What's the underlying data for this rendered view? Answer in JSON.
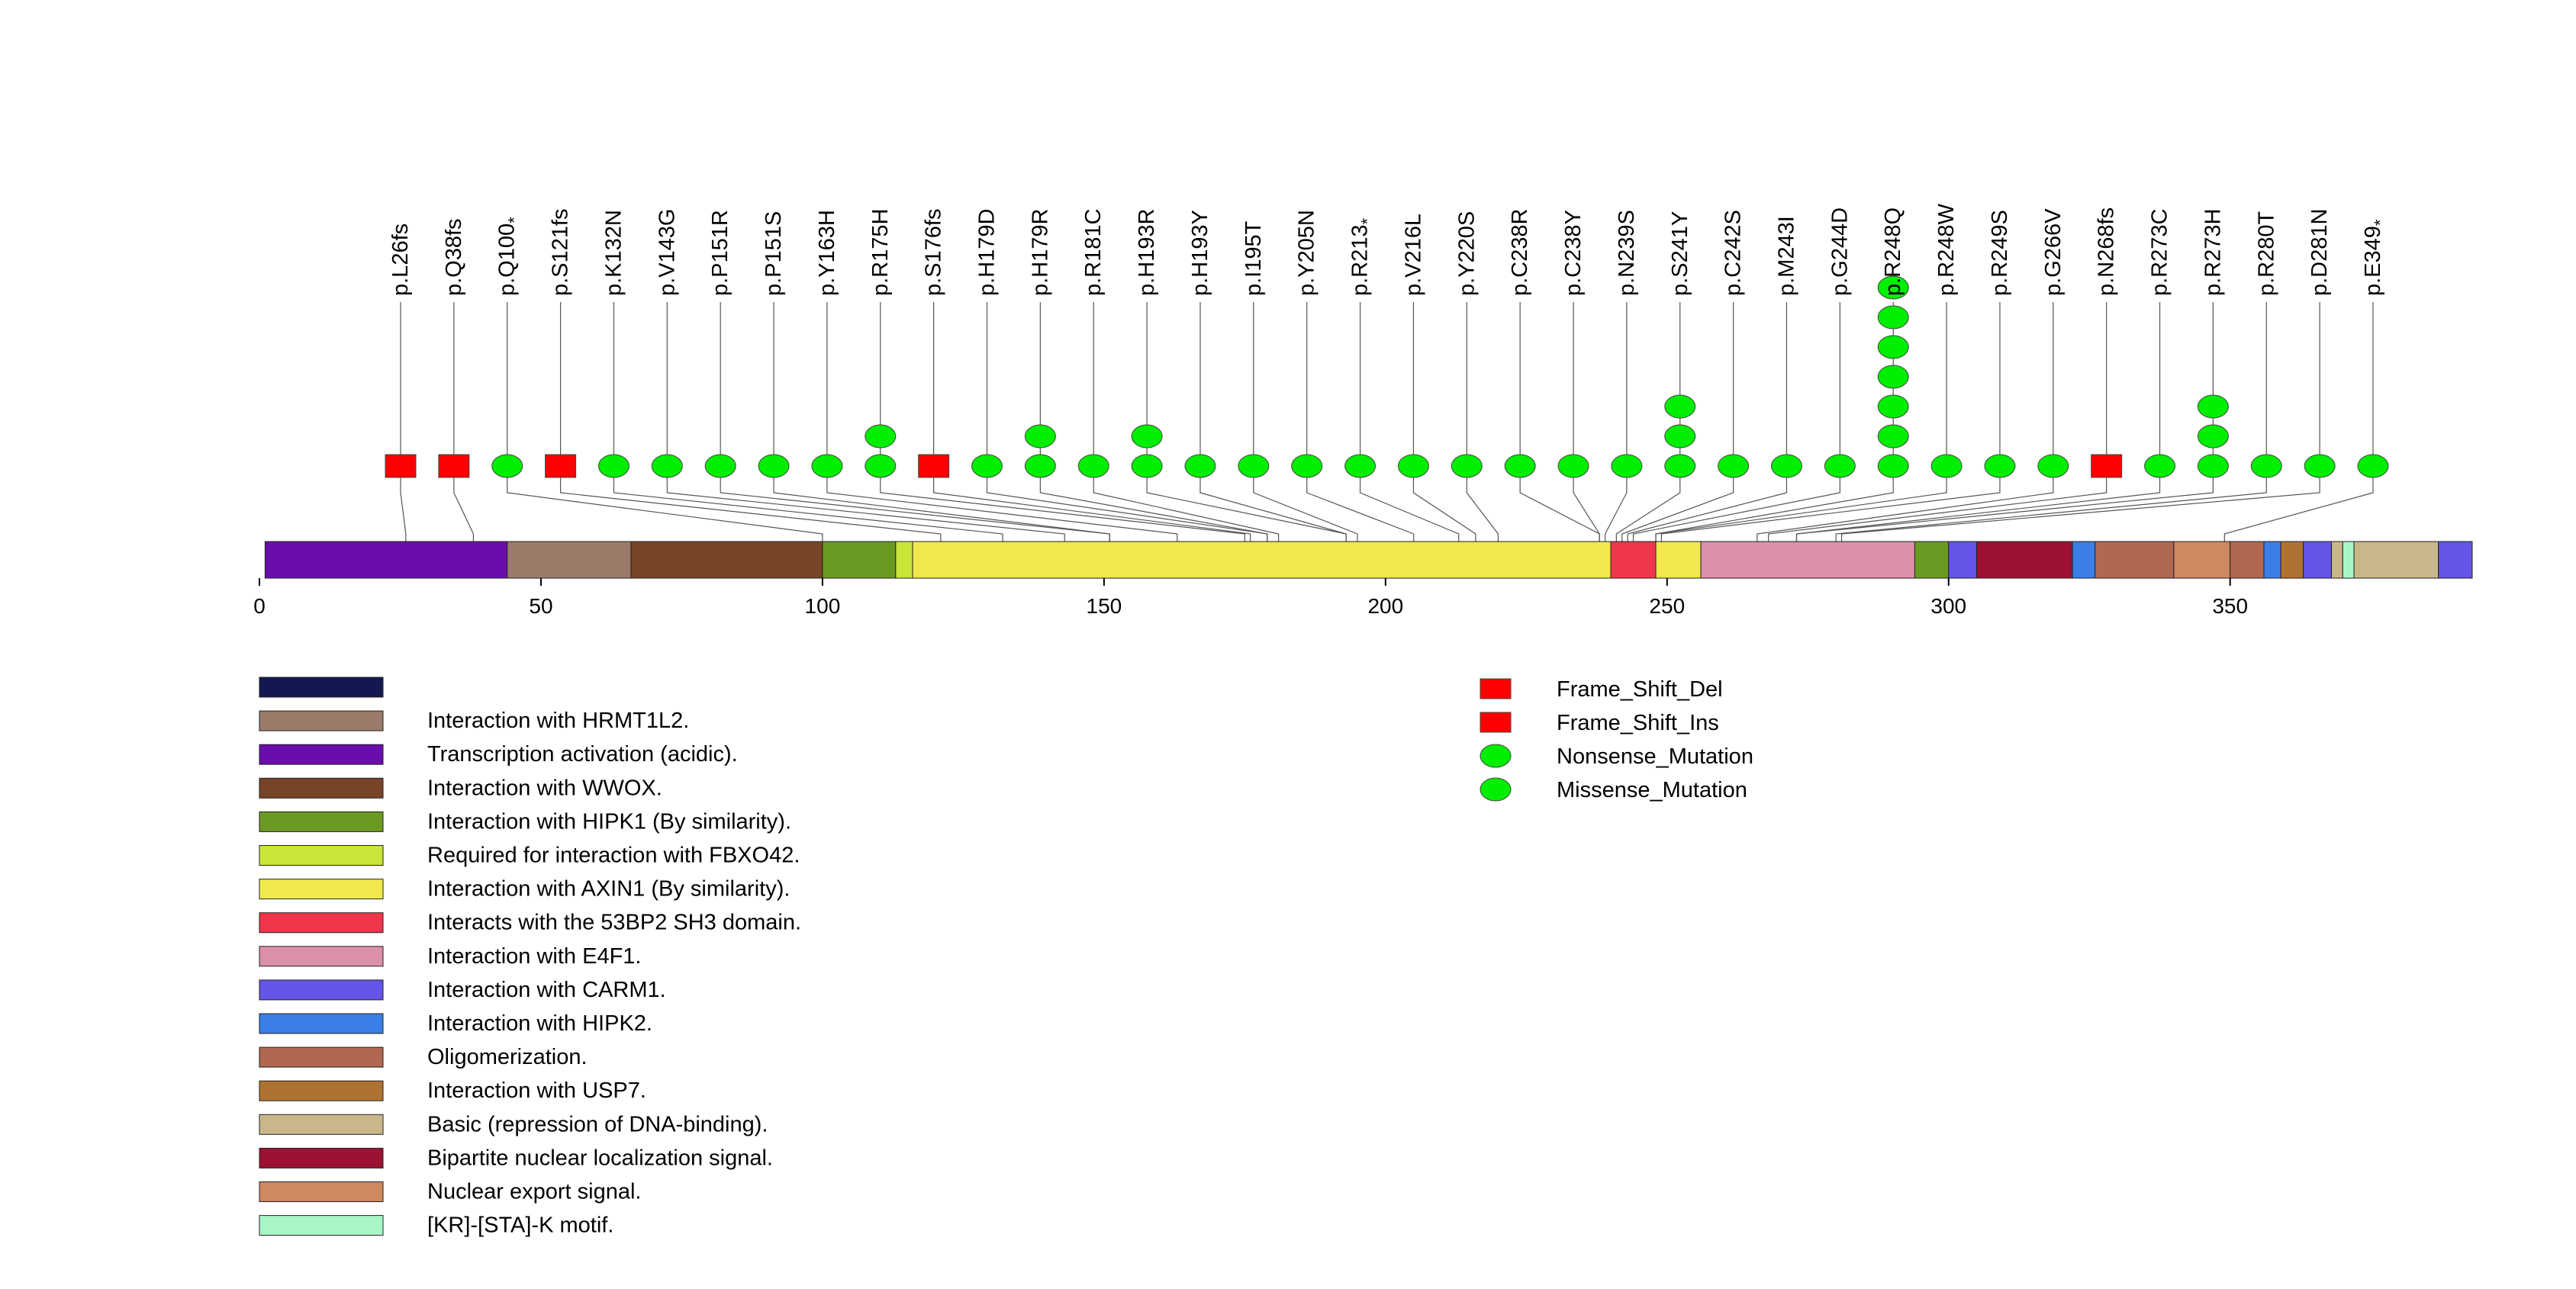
{
  "chart_data": {
    "type": "lollipop",
    "title": "",
    "protein_length": 393,
    "axis": {
      "min": 0,
      "max": 393,
      "ticks": [
        0,
        50,
        100,
        150,
        200,
        250,
        300,
        350
      ]
    },
    "domains": [
      {
        "start": 1,
        "end": 44,
        "color": "#6a0dad",
        "label": "Transcription activation (acidic)."
      },
      {
        "start": 44,
        "end": 66,
        "color": "#9b7a6a",
        "label": "Interaction with HRMT1L2."
      },
      {
        "start": 66,
        "end": 100,
        "color": "#774428",
        "label": "Interaction with WWOX."
      },
      {
        "start": 100,
        "end": 113,
        "color": "#6b9a22",
        "label": "Interaction with HIPK1 (By similarity)."
      },
      {
        "start": 113,
        "end": 116,
        "color": "#c9e53a",
        "label": "Required for interaction with FBXO42."
      },
      {
        "start": 116,
        "end": 240,
        "color": "#f0e84c",
        "label": "Interaction with AXIN1 (By similarity)."
      },
      {
        "start": 240,
        "end": 248,
        "color": "#f0364a",
        "label": "Interacts with the 53BP2 SH3 domain."
      },
      {
        "start": 248,
        "end": 256,
        "color": "#f0e84c",
        "label": ""
      },
      {
        "start": 256,
        "end": 294,
        "color": "#dc8fab",
        "label": "Interaction with E4F1."
      },
      {
        "start": 294,
        "end": 300,
        "color": "#6b9a22",
        "label": ""
      },
      {
        "start": 300,
        "end": 305,
        "color": "#6454e8",
        "label": "Interaction with CARM1."
      },
      {
        "start": 305,
        "end": 322,
        "color": "#9b1233",
        "label": "Bipartite nuclear localization signal."
      },
      {
        "start": 322,
        "end": 326,
        "color": "#3a7ee8",
        "label": "Interaction with HIPK2."
      },
      {
        "start": 326,
        "end": 340,
        "color": "#b06850",
        "label": "Oligomerization."
      },
      {
        "start": 340,
        "end": 350,
        "color": "#cf8860",
        "label": "Nuclear export signal."
      },
      {
        "start": 350,
        "end": 356,
        "color": "#b06850",
        "label": ""
      },
      {
        "start": 356,
        "end": 359,
        "color": "#3a7ee8",
        "label": ""
      },
      {
        "start": 359,
        "end": 363,
        "color": "#b07230",
        "label": "Interaction with USP7."
      },
      {
        "start": 363,
        "end": 368,
        "color": "#6454e8",
        "label": ""
      },
      {
        "start": 368,
        "end": 370,
        "color": "#c9b78a",
        "label": ""
      },
      {
        "start": 370,
        "end": 372,
        "color": "#a8f5c8",
        "label": "[KR]-[STA]-K motif."
      },
      {
        "start": 372,
        "end": 387,
        "color": "#c9b78a",
        "label": "Basic (repression of DNA-binding)."
      },
      {
        "start": 387,
        "end": 393,
        "color": "#6454e8",
        "label": ""
      }
    ],
    "domain_legend": [
      {
        "color": "#141850",
        "label": ""
      },
      {
        "color": "#9b7a6a",
        "label": "Interaction with HRMT1L2."
      },
      {
        "color": "#6a0dad",
        "label": "Transcription activation (acidic)."
      },
      {
        "color": "#774428",
        "label": "Interaction with WWOX."
      },
      {
        "color": "#6b9a22",
        "label": "Interaction with HIPK1 (By similarity)."
      },
      {
        "color": "#c9e53a",
        "label": "Required for interaction with FBXO42."
      },
      {
        "color": "#f0e84c",
        "label": "Interaction with AXIN1 (By similarity)."
      },
      {
        "color": "#f0364a",
        "label": "Interacts with the 53BP2 SH3 domain."
      },
      {
        "color": "#dc8fab",
        "label": "Interaction with E4F1."
      },
      {
        "color": "#6454e8",
        "label": "Interaction with CARM1."
      },
      {
        "color": "#3a7ee8",
        "label": "Interaction with HIPK2."
      },
      {
        "color": "#b06850",
        "label": "Oligomerization."
      },
      {
        "color": "#b07230",
        "label": "Interaction with USP7."
      },
      {
        "color": "#c9b78a",
        "label": "Basic (repression of DNA-binding)."
      },
      {
        "color": "#9b1233",
        "label": "Bipartite nuclear localization signal."
      },
      {
        "color": "#cf8860",
        "label": "Nuclear export signal."
      },
      {
        "color": "#a8f5c8",
        "label": "[KR]-[STA]-K motif."
      }
    ],
    "mutation_legend": [
      {
        "shape": "square",
        "color": "#ff0000",
        "label": "Frame_Shift_Del"
      },
      {
        "shape": "square",
        "color": "#ff0000",
        "label": "Frame_Shift_Ins"
      },
      {
        "shape": "ellipse",
        "color": "#00ee00",
        "label": "Nonsense_Mutation"
      },
      {
        "shape": "ellipse",
        "color": "#00ee00",
        "label": "Missense_Mutation"
      }
    ],
    "mutations": [
      {
        "label": "p.L26fs",
        "position": 26,
        "count": 1,
        "shape": "square",
        "star": false
      },
      {
        "label": "p.Q38fs",
        "position": 38,
        "count": 1,
        "shape": "square",
        "star": false
      },
      {
        "label": "p.Q100",
        "position": 100,
        "count": 1,
        "shape": "ellipse",
        "star": true
      },
      {
        "label": "p.S121fs",
        "position": 121,
        "count": 1,
        "shape": "square",
        "star": false
      },
      {
        "label": "p.K132N",
        "position": 132,
        "count": 1,
        "shape": "ellipse",
        "star": false
      },
      {
        "label": "p.V143G",
        "position": 143,
        "count": 1,
        "shape": "ellipse",
        "star": false
      },
      {
        "label": "p.P151R",
        "position": 151,
        "count": 1,
        "shape": "ellipse",
        "star": false
      },
      {
        "label": "p.P151S",
        "position": 151,
        "count": 1,
        "shape": "ellipse",
        "star": false
      },
      {
        "label": "p.Y163H",
        "position": 163,
        "count": 1,
        "shape": "ellipse",
        "star": false
      },
      {
        "label": "p.R175H",
        "position": 175,
        "count": 2,
        "shape": "ellipse",
        "star": false
      },
      {
        "label": "p.S176fs",
        "position": 176,
        "count": 1,
        "shape": "square",
        "star": false
      },
      {
        "label": "p.H179D",
        "position": 179,
        "count": 1,
        "shape": "ellipse",
        "star": false
      },
      {
        "label": "p.H179R",
        "position": 179,
        "count": 2,
        "shape": "ellipse",
        "star": false
      },
      {
        "label": "p.R181C",
        "position": 181,
        "count": 1,
        "shape": "ellipse",
        "star": false
      },
      {
        "label": "p.H193R",
        "position": 193,
        "count": 2,
        "shape": "ellipse",
        "star": false
      },
      {
        "label": "p.H193Y",
        "position": 193,
        "count": 1,
        "shape": "ellipse",
        "star": false
      },
      {
        "label": "p.I195T",
        "position": 195,
        "count": 1,
        "shape": "ellipse",
        "star": false
      },
      {
        "label": "p.Y205N",
        "position": 205,
        "count": 1,
        "shape": "ellipse",
        "star": false
      },
      {
        "label": "p.R213",
        "position": 213,
        "count": 1,
        "shape": "ellipse",
        "star": true
      },
      {
        "label": "p.V216L",
        "position": 216,
        "count": 1,
        "shape": "ellipse",
        "star": false
      },
      {
        "label": "p.Y220S",
        "position": 220,
        "count": 1,
        "shape": "ellipse",
        "star": false
      },
      {
        "label": "p.C238R",
        "position": 238,
        "count": 1,
        "shape": "ellipse",
        "star": false
      },
      {
        "label": "p.C238Y",
        "position": 238,
        "count": 1,
        "shape": "ellipse",
        "star": false
      },
      {
        "label": "p.N239S",
        "position": 239,
        "count": 1,
        "shape": "ellipse",
        "star": false
      },
      {
        "label": "p.S241Y",
        "position": 241,
        "count": 3,
        "shape": "ellipse",
        "star": false
      },
      {
        "label": "p.C242S",
        "position": 242,
        "count": 1,
        "shape": "ellipse",
        "star": false
      },
      {
        "label": "p.M243I",
        "position": 243,
        "count": 1,
        "shape": "ellipse",
        "star": false
      },
      {
        "label": "p.G244D",
        "position": 244,
        "count": 1,
        "shape": "ellipse",
        "star": false
      },
      {
        "label": "p.R248Q",
        "position": 248,
        "count": 7,
        "shape": "ellipse",
        "star": false
      },
      {
        "label": "p.R248W",
        "position": 248,
        "count": 1,
        "shape": "ellipse",
        "star": false
      },
      {
        "label": "p.R249S",
        "position": 249,
        "count": 1,
        "shape": "ellipse",
        "star": false
      },
      {
        "label": "p.G266V",
        "position": 266,
        "count": 1,
        "shape": "ellipse",
        "star": false
      },
      {
        "label": "p.N268fs",
        "position": 268,
        "count": 1,
        "shape": "square",
        "star": false
      },
      {
        "label": "p.R273C",
        "position": 273,
        "count": 1,
        "shape": "ellipse",
        "star": false
      },
      {
        "label": "p.R273H",
        "position": 273,
        "count": 3,
        "shape": "ellipse",
        "star": false
      },
      {
        "label": "p.R280T",
        "position": 280,
        "count": 1,
        "shape": "ellipse",
        "star": false
      },
      {
        "label": "p.D281N",
        "position": 281,
        "count": 1,
        "shape": "ellipse",
        "star": false
      },
      {
        "label": "p.E349",
        "position": 349,
        "count": 1,
        "shape": "ellipse",
        "star": true
      }
    ],
    "colors": {
      "square": "#ff0000",
      "ellipse": "#00ee00"
    }
  }
}
